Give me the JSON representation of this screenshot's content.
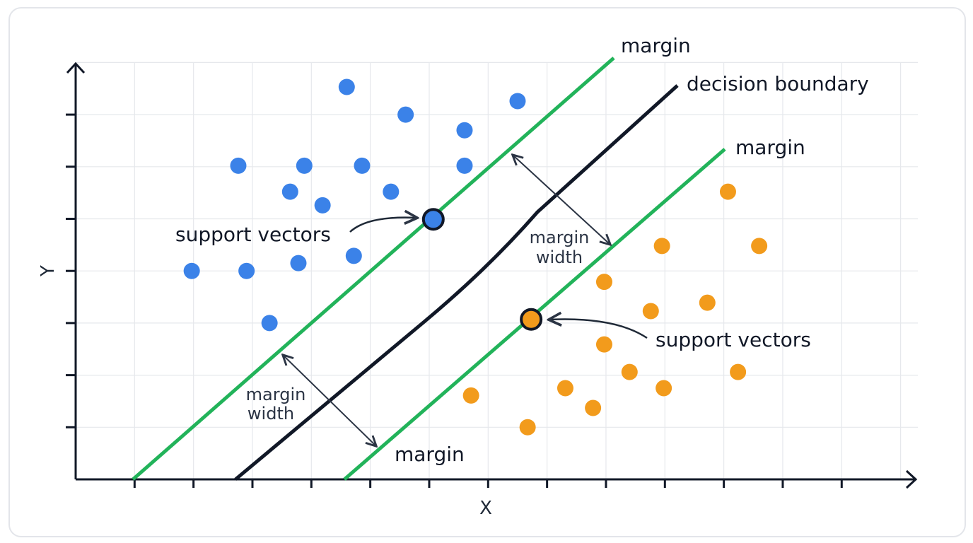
{
  "axes": {
    "x_label": "X",
    "y_label": "Y"
  },
  "labels": {
    "margin_top": "margin",
    "decision_boundary": "decision boundary",
    "margin_right": "margin",
    "margin_bottom": "margin",
    "support_vectors_left": "support vectors",
    "support_vectors_right": "support vectors",
    "margin_width_upper_1": "margin",
    "margin_width_upper_2": "width",
    "margin_width_lower_1": "margin",
    "margin_width_lower_2": "width"
  },
  "colors": {
    "class_a": "#3b82e8",
    "class_b": "#f29b1c",
    "margin": "#22b35a",
    "boundary": "#111827",
    "grid": "#e6e8ec"
  },
  "points": {
    "class_a": [
      [
        4.6,
        7.53
      ],
      [
        5.6,
        7.0
      ],
      [
        6.6,
        6.7
      ],
      [
        7.5,
        7.26
      ],
      [
        2.76,
        6.02
      ],
      [
        3.88,
        6.02
      ],
      [
        4.86,
        6.02
      ],
      [
        6.6,
        6.02
      ],
      [
        3.64,
        5.52
      ],
      [
        5.35,
        5.52
      ],
      [
        4.19,
        5.26
      ],
      [
        4.72,
        4.29
      ],
      [
        1.97,
        4.0
      ],
      [
        2.9,
        4.0
      ],
      [
        3.78,
        4.15
      ],
      [
        3.29,
        3.0
      ]
    ],
    "class_b": [
      [
        11.07,
        5.52
      ],
      [
        9.95,
        4.48
      ],
      [
        11.6,
        4.48
      ],
      [
        8.97,
        3.79
      ],
      [
        9.76,
        3.23
      ],
      [
        10.72,
        3.39
      ],
      [
        8.97,
        2.59
      ],
      [
        9.4,
        2.06
      ],
      [
        11.24,
        2.06
      ],
      [
        6.71,
        1.61
      ],
      [
        8.31,
        1.75
      ],
      [
        8.78,
        1.37
      ],
      [
        9.98,
        1.75
      ],
      [
        7.67,
        1.0
      ]
    ],
    "support_vector_a": [
      6.07,
      4.99
    ],
    "support_vector_b": [
      7.73,
      3.07
    ]
  }
}
